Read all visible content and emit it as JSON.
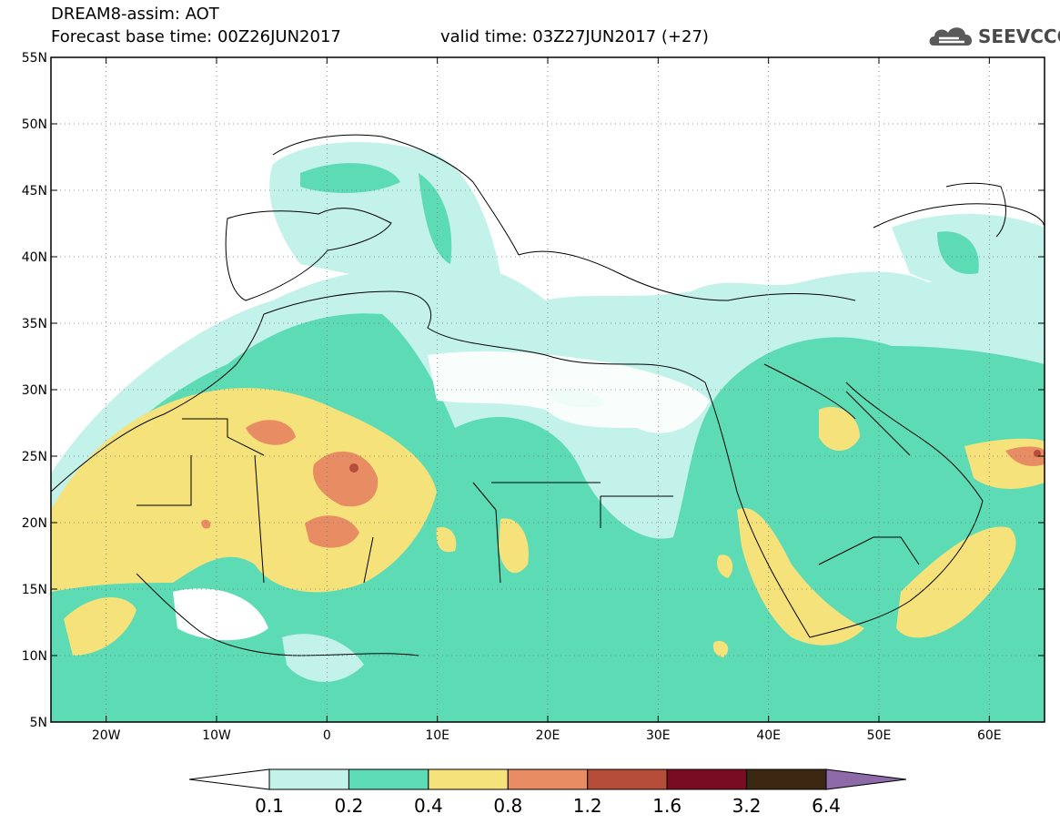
{
  "header": {
    "model_title": "DREAM8-assim: AOT",
    "base_time": "Forecast base time: 00Z26JUN2017",
    "valid_time": "valid time: 03Z27JUN2017 (+27)"
  },
  "logo": {
    "text": "SEEVCCC",
    "icon": "cloud-icon"
  },
  "axes": {
    "lon_range": [
      -25,
      65
    ],
    "lat_range": [
      5,
      55
    ],
    "lon_ticks": [
      {
        "value": -20,
        "label": "20W"
      },
      {
        "value": -10,
        "label": "10W"
      },
      {
        "value": 0,
        "label": "0"
      },
      {
        "value": 10,
        "label": "10E"
      },
      {
        "value": 20,
        "label": "20E"
      },
      {
        "value": 30,
        "label": "30E"
      },
      {
        "value": 40,
        "label": "40E"
      },
      {
        "value": 50,
        "label": "50E"
      },
      {
        "value": 60,
        "label": "60E"
      }
    ],
    "lat_ticks": [
      {
        "value": 55,
        "label": "55N"
      },
      {
        "value": 50,
        "label": "50N"
      },
      {
        "value": 45,
        "label": "45N"
      },
      {
        "value": 40,
        "label": "40N"
      },
      {
        "value": 35,
        "label": "35N"
      },
      {
        "value": 30,
        "label": "30N"
      },
      {
        "value": 25,
        "label": "25N"
      },
      {
        "value": 20,
        "label": "20N"
      },
      {
        "value": 15,
        "label": "15N"
      },
      {
        "value": 10,
        "label": "10N"
      },
      {
        "value": 5,
        "label": "5N"
      }
    ],
    "grid": "dotted"
  },
  "colorbar": {
    "labels": [
      "0.1",
      "0.2",
      "0.4",
      "0.8",
      "1.2",
      "1.6",
      "3.2",
      "6.4"
    ],
    "colors": [
      "#ffffff",
      "#c2f2e9",
      "#5ddbb5",
      "#f5e27a",
      "#e88c64",
      "#b54d3a",
      "#7a0c22",
      "#3c2812",
      "#8e6aa8"
    ]
  },
  "legend_levels": {
    "very_light": "#c2f2e9",
    "light": "#5ddbb5",
    "medium": "#f5e27a",
    "high": "#e88c64",
    "very_high": "#b54d3a"
  }
}
